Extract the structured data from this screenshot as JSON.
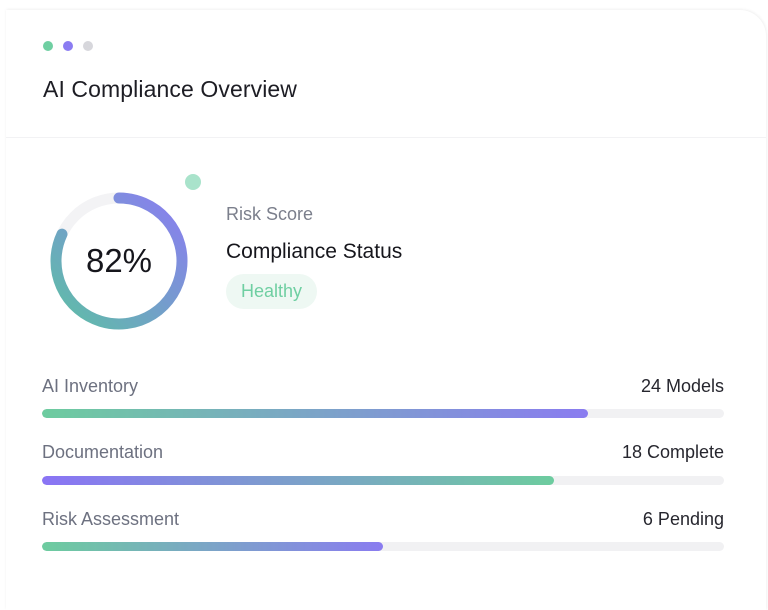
{
  "header": {
    "dots": [
      {
        "name": "green-dot",
        "color": "#6fcfa2"
      },
      {
        "name": "purple-dot",
        "color": "#8b7cf2"
      },
      {
        "name": "gray-dot",
        "color": "#d7d7dc"
      }
    ],
    "title": "AI Compliance Overview"
  },
  "score": {
    "percent_text": "82%",
    "percent_value": 0.82,
    "risk_label": "Risk Score",
    "status_title": "Compliance Status",
    "status_badge": "Healthy",
    "colors": {
      "gradient_start": "#8b7cf2",
      "gradient_end": "#5dbfa5",
      "track": "#f3f3f5"
    }
  },
  "metrics": [
    {
      "label": "AI Inventory",
      "value": "24 Models",
      "fill_fraction": 0.8,
      "gradient": "teal-to-purple"
    },
    {
      "label": "Documentation",
      "value": "18 Complete",
      "fill_fraction": 0.75,
      "gradient": "purple-to-teal"
    },
    {
      "label": "Risk Assessment",
      "value": "6 Pending",
      "fill_fraction": 0.5,
      "gradient": "teal-to-purple"
    }
  ]
}
